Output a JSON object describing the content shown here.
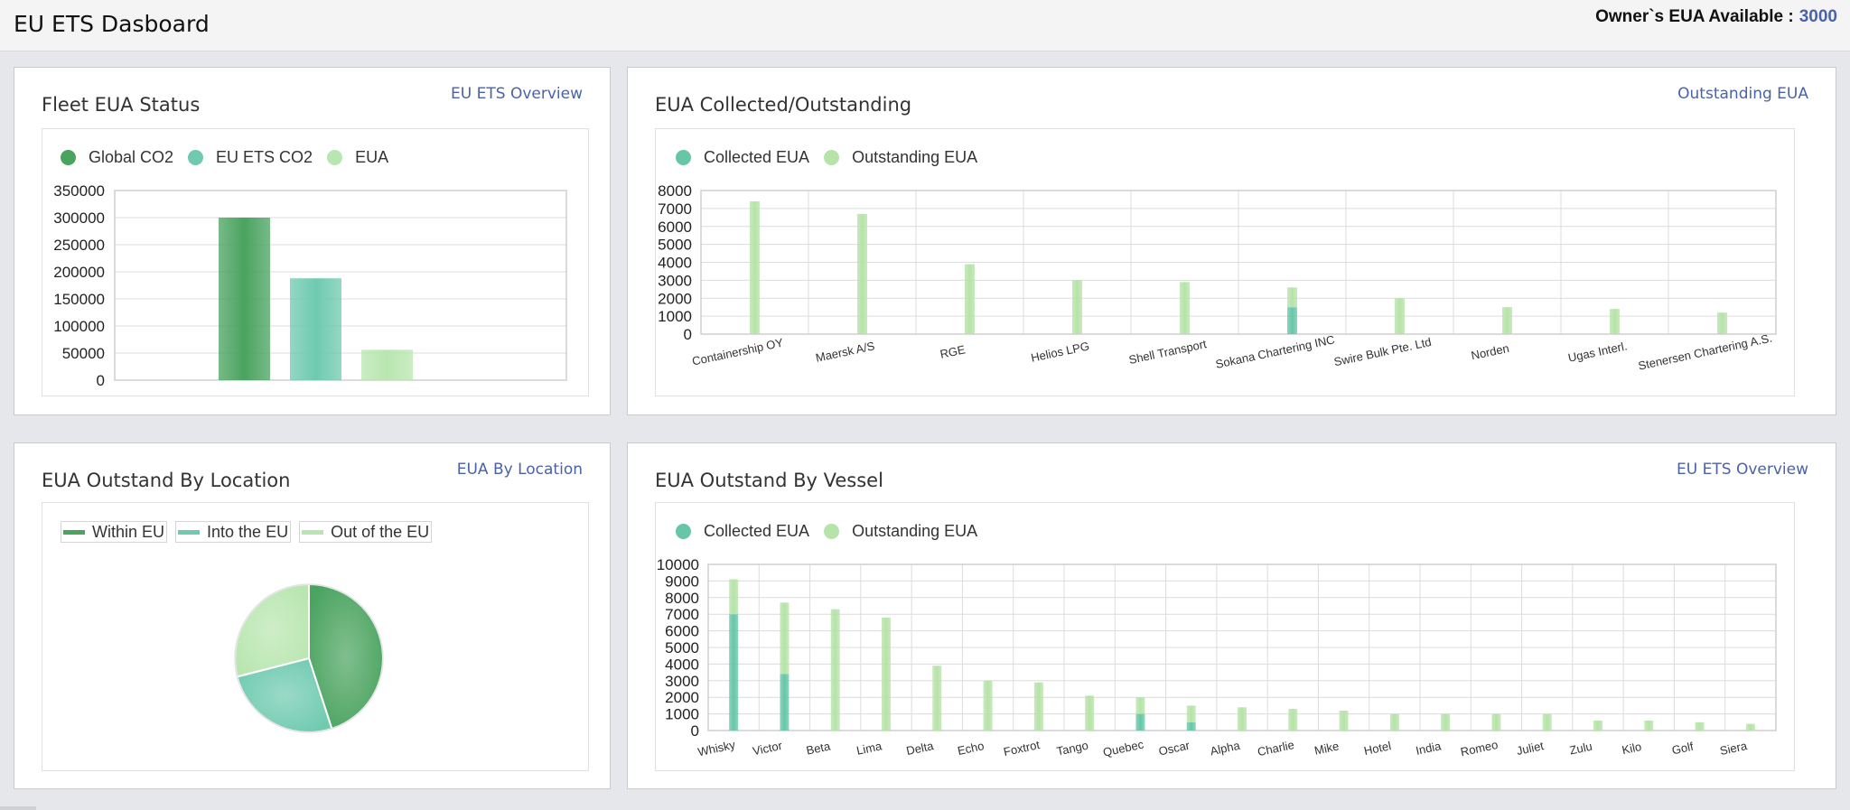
{
  "header": {
    "title": "EU ETS Dasboard",
    "owner_label": "Owner`s EUA Available :",
    "owner_value": "3000"
  },
  "colors": {
    "global_co2": "#4aa35f",
    "eu_ets_co2": "#6fcaaf",
    "eua": "#b9e6b0",
    "collected": "#67c6a8",
    "outstanding": "#b6e3a8",
    "link": "#4a62a8"
  },
  "fleet_status": {
    "title": "Fleet EUA Status",
    "link": "EU ETS Overview",
    "legend": [
      "Global CO2",
      "EU ETS CO2",
      "EUA"
    ]
  },
  "collected_outstanding": {
    "title": "EUA Collected/Outstanding",
    "link": "Outstanding EUA",
    "legend": [
      "Collected EUA",
      "Outstanding EUA"
    ]
  },
  "by_location": {
    "title": "EUA Outstand By Location",
    "link": "EUA By Location",
    "legend": [
      "Within EU",
      "Into the EU",
      "Out of the EU"
    ]
  },
  "by_vessel": {
    "title": "EUA Outstand By Vessel",
    "link": "EU ETS Overview",
    "legend": [
      "Collected EUA",
      "Outstanding EUA"
    ]
  },
  "chart_data": [
    {
      "id": "fleet",
      "type": "bar",
      "categories": [
        "Global CO2",
        "EU ETS CO2",
        "EUA"
      ],
      "values": [
        300000,
        188000,
        56000
      ],
      "ylim": [
        0,
        350000
      ],
      "yticks": [
        "350000",
        "300000",
        "250000",
        "200000",
        "150000",
        "100000",
        "50000",
        "0"
      ],
      "grid": true,
      "legend": "top-left"
    },
    {
      "id": "charterers",
      "type": "bar",
      "stacked": true,
      "categories": [
        "Containership OY",
        "Maersk A/S",
        "RGE",
        "Helios LPG",
        "Shell Transport",
        "Sokana Chartering INC",
        "Swire Bulk Pte. Ltd",
        "Norden",
        "Ugas Interl.",
        "Stenersen Chartering A.S."
      ],
      "series": [
        {
          "name": "Collected EUA",
          "values": [
            0,
            0,
            0,
            0,
            0,
            1500,
            0,
            0,
            0,
            0
          ]
        },
        {
          "name": "Outstanding EUA",
          "values": [
            7400,
            6700,
            3900,
            3000,
            2900,
            1100,
            2000,
            1500,
            1400,
            1200
          ]
        }
      ],
      "ylim": [
        0,
        8000
      ],
      "yticks": [
        "8000",
        "7000",
        "6000",
        "5000",
        "4000",
        "3000",
        "2000",
        "1000",
        "0"
      ],
      "grid": true,
      "legend": "top-left"
    },
    {
      "id": "location",
      "type": "pie",
      "categories": [
        "Within EU",
        "Into the EU",
        "Out of the EU"
      ],
      "values": [
        45,
        26,
        29
      ],
      "legend": "top-left"
    },
    {
      "id": "vessels",
      "type": "bar",
      "stacked": true,
      "categories": [
        "Whisky",
        "Victor",
        "Beta",
        "Lima",
        "Delta",
        "Echo",
        "Foxtrot",
        "Tango",
        "Quebec",
        "Oscar",
        "Alpha",
        "Charlie",
        "Mike",
        "Hotel",
        "India",
        "Romeo",
        "Juliet",
        "Zulu",
        "Kilo",
        "Golf",
        "Siera"
      ],
      "series": [
        {
          "name": "Collected EUA",
          "values": [
            7000,
            3400,
            0,
            0,
            0,
            0,
            0,
            0,
            1000,
            500,
            0,
            0,
            0,
            0,
            0,
            0,
            0,
            0,
            0,
            0,
            0
          ]
        },
        {
          "name": "Outstanding EUA",
          "values": [
            2100,
            4300,
            7300,
            6800,
            3900,
            3000,
            2900,
            2100,
            1000,
            1000,
            1400,
            1300,
            1200,
            1000,
            1000,
            1000,
            1000,
            600,
            600,
            500,
            400
          ]
        }
      ],
      "ylim": [
        0,
        10000
      ],
      "yticks": [
        "10000",
        "9000",
        "8000",
        "7000",
        "6000",
        "5000",
        "4000",
        "3000",
        "2000",
        "1000",
        "0"
      ],
      "grid": true,
      "legend": "top-left"
    }
  ]
}
